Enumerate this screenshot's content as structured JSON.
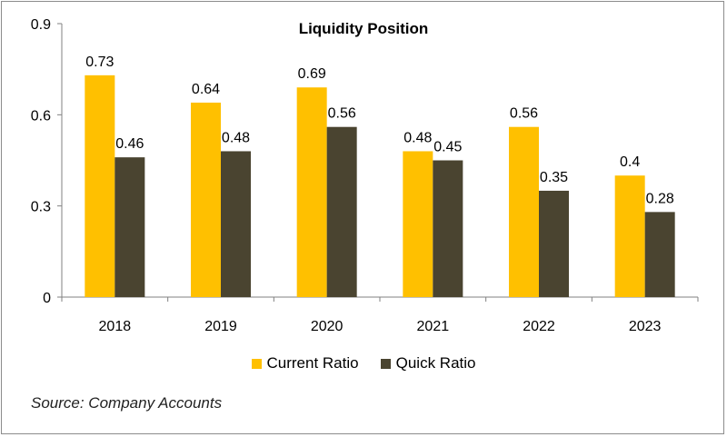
{
  "chart_data": {
    "type": "bar",
    "title": "Liquidity Position",
    "categories": [
      "2018",
      "2019",
      "2020",
      "2021",
      "2022",
      "2023"
    ],
    "series": [
      {
        "name": "Current Ratio",
        "values": [
          0.73,
          0.64,
          0.69,
          0.48,
          0.56,
          0.4
        ],
        "labels": [
          "0.73",
          "0.64",
          "0.69",
          "0.48",
          "0.56",
          "0.4"
        ]
      },
      {
        "name": "Quick Ratio",
        "values": [
          0.46,
          0.48,
          0.56,
          0.45,
          0.35,
          0.28
        ],
        "labels": [
          "0.46",
          "0.48",
          "0.56",
          "0.45",
          "0.35",
          "0.28"
        ]
      }
    ],
    "ylim": [
      0,
      0.9
    ],
    "yticks": [
      0,
      0.3,
      0.6,
      0.9
    ],
    "ytick_labels": [
      "0",
      "0.3",
      "0.6",
      "0.9"
    ],
    "xlabel": "",
    "ylabel": "",
    "legend_position": "bottom",
    "grid": false
  },
  "colors": {
    "current": "#FFC000",
    "quick": "#4A4430"
  },
  "source": "Source: Company Accounts"
}
